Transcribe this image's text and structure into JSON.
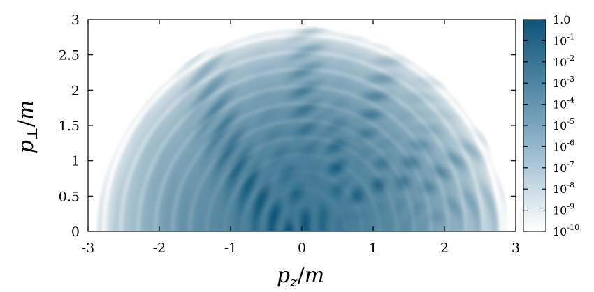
{
  "chart_data": {
    "type": "heatmap",
    "title": "",
    "xlabel": "p_z/m",
    "ylabel": "p_⊥/m",
    "xlim": [
      -3,
      3
    ],
    "ylim": [
      0,
      3
    ],
    "x_ticks": [
      "-3",
      "-2",
      "-1",
      "0",
      "1",
      "2",
      "3"
    ],
    "x_tick_values": [
      -3,
      -2,
      -1,
      0,
      1,
      2,
      3
    ],
    "y_ticks": [
      "0",
      "0.5",
      "1",
      "1.5",
      "2",
      "2.5",
      "3"
    ],
    "y_tick_values": [
      0,
      0.5,
      1,
      1.5,
      2,
      2.5,
      3
    ],
    "grid": false,
    "colorbar": {
      "scale": "log",
      "range": [
        1e-10,
        1.0
      ],
      "tick_labels": [
        {
          "value": 1.0,
          "base": "1.0",
          "exp": ""
        },
        {
          "value": 0.1,
          "base": "10",
          "exp": "-1"
        },
        {
          "value": 0.01,
          "base": "10",
          "exp": "-2"
        },
        {
          "value": 0.001,
          "base": "10",
          "exp": "-3"
        },
        {
          "value": 0.0001,
          "base": "10",
          "exp": "-4"
        },
        {
          "value": 1e-05,
          "base": "10",
          "exp": "-5"
        },
        {
          "value": 1e-06,
          "base": "10",
          "exp": "-6"
        },
        {
          "value": 1e-07,
          "base": "10",
          "exp": "-7"
        },
        {
          "value": 1e-08,
          "base": "10",
          "exp": "-8"
        },
        {
          "value": 1e-09,
          "base": "10",
          "exp": "-9"
        },
        {
          "value": 1e-10,
          "base": "10",
          "exp": "-10"
        }
      ],
      "color_low": "#ffffff",
      "color_high": "#0d5478"
    },
    "distribution": {
      "support_radius": 2.9,
      "peak": [
        0.0,
        0.0
      ],
      "ring_centers": [
        [
          -0.2,
          0.0
        ],
        [
          0.8,
          0.0
        ],
        [
          1.9,
          0.0
        ]
      ]
    }
  }
}
